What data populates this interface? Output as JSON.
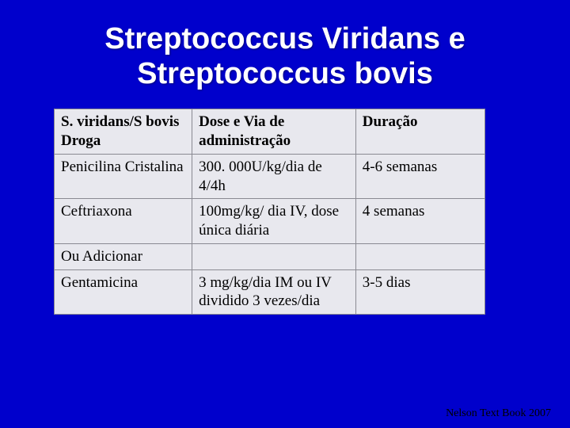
{
  "title": "Streptococcus Viridans e Streptococcus bovis",
  "table": {
    "columns": [
      "S. viridans/S bovis Droga",
      "Dose e Via de administração",
      "Duração"
    ],
    "rows": [
      [
        "Penicilina Cristalina",
        "300. 000U/kg/dia de 4/4h",
        "4-6 semanas"
      ],
      [
        "Ceftriaxona",
        "100mg/kg/ dia IV, dose única diária",
        "4 semanas"
      ],
      [
        "Ou  Adicionar",
        "",
        ""
      ],
      [
        "Gentamicina",
        "3 mg/kg/dia IM ou IV  dividido 3 vezes/dia",
        "3-5 dias"
      ]
    ],
    "header_bg": "#e8e8ee",
    "cell_bg": "#e8e8ee",
    "border_color": "#8a8a92",
    "font_family": "Times New Roman",
    "header_fontsize": 19,
    "cell_fontsize": 19
  },
  "citation": "Nelson Text Book 2007",
  "background_color": "#0000cc",
  "title_color": "#ffffff",
  "title_fontsize": 38
}
